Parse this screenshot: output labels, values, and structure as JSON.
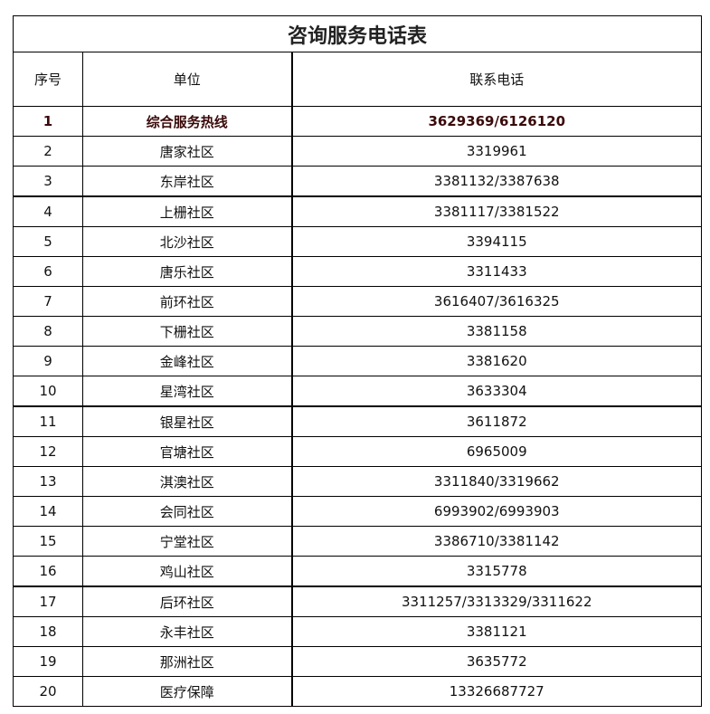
{
  "title": "咨询服务电话表",
  "headers": [
    "序号",
    "单位",
    "联系电话"
  ],
  "rows": [
    [
      "1",
      "综合服务热线",
      "3629369/6126120"
    ],
    [
      "2",
      "唐家社区",
      "3319961"
    ],
    [
      "3",
      "东岸社区",
      "3381132/3387638"
    ],
    [
      "4",
      "上栅社区",
      "3381117/3381522"
    ],
    [
      "5",
      "北沙社区",
      "3394115"
    ],
    [
      "6",
      "唐乐社区",
      "3311433"
    ],
    [
      "7",
      "前环社区",
      "3616407/3616325"
    ],
    [
      "8",
      "下栅社区",
      "3381158"
    ],
    [
      "9",
      "金峰社区",
      "3381620"
    ],
    [
      "10",
      "星湾社区",
      "3633304"
    ],
    [
      "11",
      "银星社区",
      "3611872"
    ],
    [
      "12",
      "官塘社区",
      "6965009"
    ],
    [
      "13",
      "淇澳社区",
      "3311840/3319662"
    ],
    [
      "14",
      "会同社区",
      "6993902/6993903"
    ],
    [
      "15",
      "宁堂社区",
      "3386710/3381142"
    ],
    [
      "16",
      "鸡山社区",
      "3315778"
    ],
    [
      "17",
      "后环社区",
      "3311257/3313329/3311622"
    ],
    [
      "18",
      "永丰社区",
      "3381121"
    ],
    [
      "19",
      "那洲社区",
      "3635772"
    ],
    [
      "20",
      "医疗保障",
      "13326687727"
    ]
  ]
}
